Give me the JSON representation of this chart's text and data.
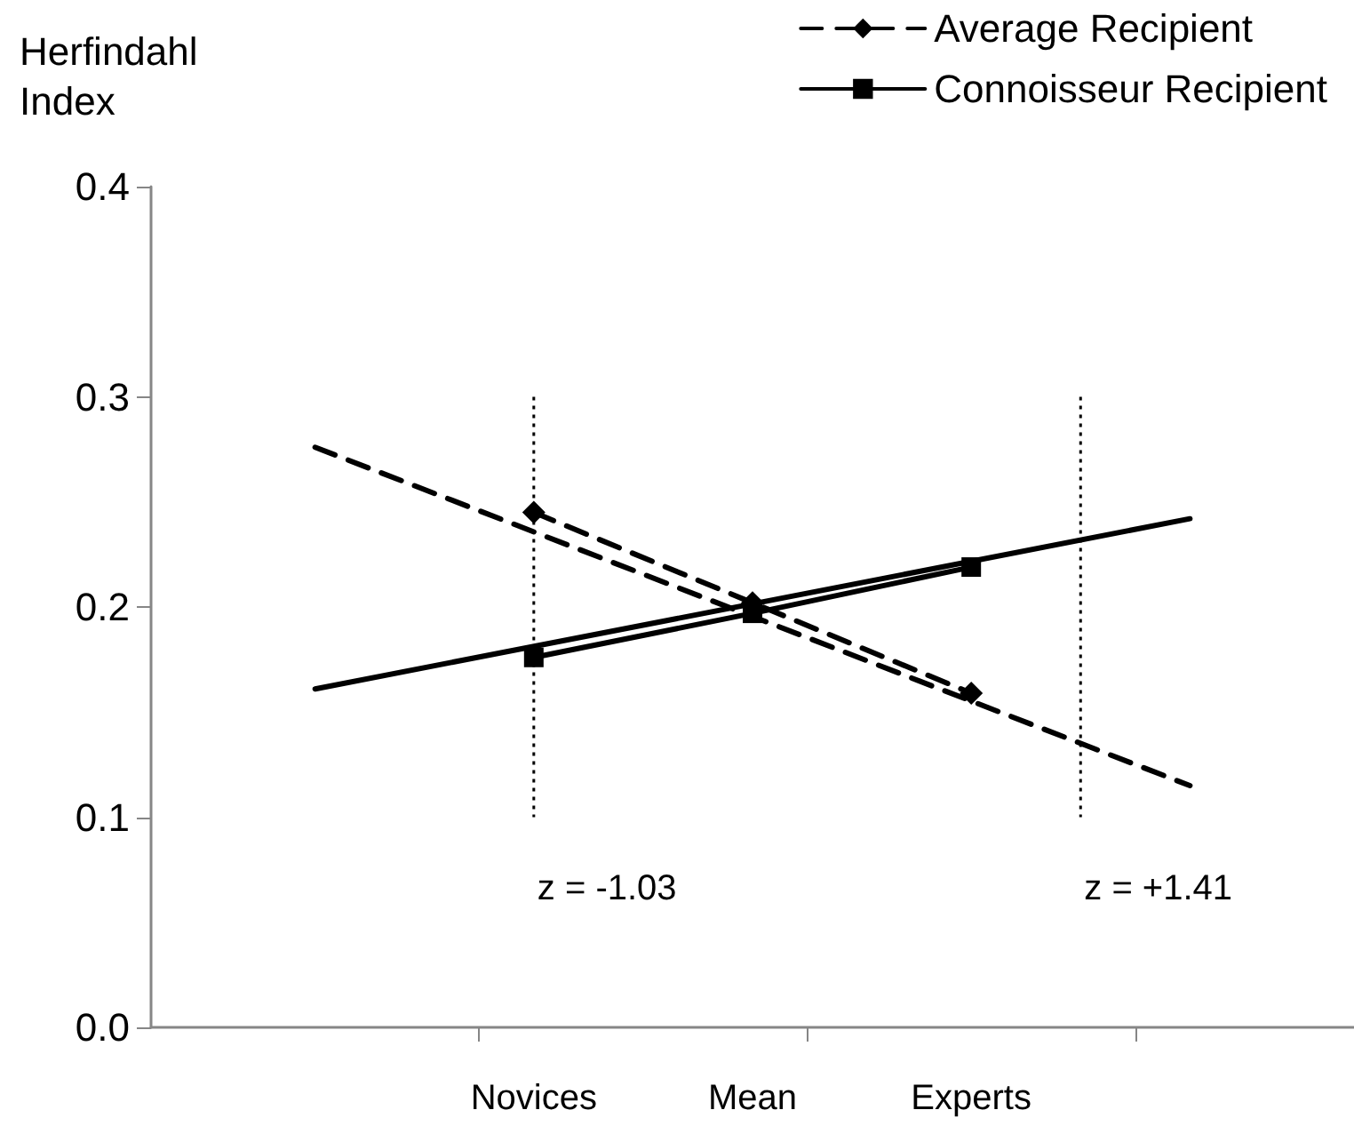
{
  "chart_data": {
    "type": "line",
    "ylabel": "Herfindahl Index",
    "categories": [
      null,
      null,
      null,
      "Novices",
      null,
      "Mean",
      null,
      "Experts",
      null,
      null,
      null
    ],
    "ylim": [
      0,
      0.4
    ],
    "yticks": [
      {
        "value": 0,
        "label": "0.0"
      },
      {
        "value": 0.1,
        "label": "0.1"
      },
      {
        "value": 0.2,
        "label": "0.2"
      },
      {
        "value": 0.3,
        "label": "0.3"
      },
      {
        "value": 0.4,
        "label": "0.4"
      }
    ],
    "grid": false,
    "legend": "top right",
    "series": [
      {
        "color": "#000000",
        "line_style": "dashed",
        "marker": "none",
        "values": [
          null,
          0.276,
          null,
          null,
          null,
          null,
          null,
          null,
          null,
          0.115,
          null
        ]
      },
      {
        "color": "#000000",
        "line_style": "solid",
        "marker": "none",
        "values": [
          null,
          0.161,
          null,
          null,
          null,
          null,
          null,
          null,
          null,
          0.242,
          null
        ]
      },
      {
        "name": "Average Recipient",
        "color": "#000000",
        "line_style": "dashed",
        "marker": "diamond",
        "values": [
          null,
          null,
          null,
          0.245,
          null,
          0.202,
          null,
          0.159,
          null,
          null,
          null
        ]
      },
      {
        "name": "Connoisseur Recipient",
        "color": "#000000",
        "line_style": "solid",
        "marker": "square",
        "values": [
          null,
          null,
          null,
          0.176,
          null,
          0.197,
          null,
          0.219,
          null,
          null,
          null
        ]
      }
    ],
    "annotations": [
      "z = -1.03",
      "z = +1.41"
    ]
  }
}
